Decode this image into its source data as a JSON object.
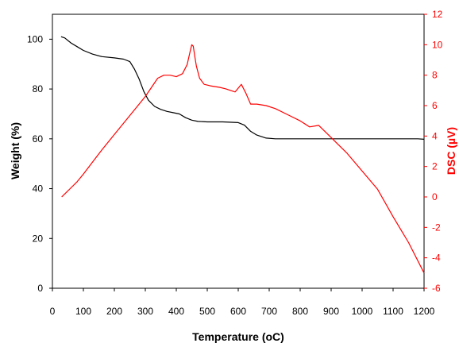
{
  "colors": {
    "weight": "#000000",
    "dsc": "#ff0000",
    "axis": "#000000"
  },
  "chart_data": {
    "type": "line",
    "xlabel": "Temperature (oC)",
    "ylabel_left": "Weight (%)",
    "ylabel_right": "DSC (µV)",
    "xlim": [
      0,
      1200
    ],
    "ylim_left": [
      0,
      110
    ],
    "ylim_right": [
      -6,
      12
    ],
    "x_ticks": [
      0,
      100,
      200,
      300,
      400,
      500,
      600,
      700,
      800,
      900,
      1000,
      1100,
      1200
    ],
    "y_left_ticks": [
      0,
      20,
      40,
      60,
      80,
      100
    ],
    "y_right_ticks": [
      -6,
      -4,
      -2,
      0,
      2,
      4,
      6,
      8,
      10,
      12
    ],
    "grid": false,
    "series": [
      {
        "axis": "left",
        "x": [
          28,
          40,
          60,
          80,
          100,
          130,
          160,
          200,
          230,
          250,
          265,
          280,
          295,
          310,
          330,
          350,
          370,
          390,
          410,
          430,
          450,
          470,
          500,
          550,
          600,
          620,
          640,
          660,
          690,
          720,
          800,
          900,
          1000,
          1100,
          1180,
          1200
        ],
        "y": [
          101,
          100.5,
          98.5,
          97,
          95.5,
          94,
          93,
          92.5,
          92,
          91,
          88,
          84,
          79,
          75.5,
          73,
          71.8,
          71,
          70.5,
          70,
          68.5,
          67.5,
          67,
          66.8,
          66.8,
          66.5,
          65.5,
          63,
          61.5,
          60.3,
          60,
          60,
          60,
          60,
          60,
          60,
          59.8
        ]
      },
      {
        "axis": "right",
        "x": [
          30,
          40,
          60,
          80,
          100,
          130,
          160,
          200,
          240,
          280,
          300,
          320,
          340,
          360,
          380,
          400,
          420,
          435,
          445,
          450,
          455,
          460,
          465,
          475,
          490,
          510,
          540,
          560,
          590,
          610,
          625,
          640,
          660,
          690,
          720,
          760,
          800,
          830,
          860,
          880,
          900,
          920,
          950,
          1000,
          1050,
          1100,
          1150,
          1200
        ],
        "y": [
          0,
          0.2,
          0.6,
          1,
          1.5,
          2.3,
          3.1,
          4.1,
          5.1,
          6.1,
          6.6,
          7.2,
          7.8,
          8,
          8,
          7.9,
          8.1,
          8.7,
          9.6,
          10,
          9.9,
          9.2,
          8.6,
          7.8,
          7.4,
          7.3,
          7.2,
          7.1,
          6.9,
          7.4,
          6.8,
          6.1,
          6.1,
          6,
          5.8,
          5.4,
          5,
          4.6,
          4.7,
          4.3,
          3.9,
          3.5,
          2.9,
          1.7,
          0.5,
          -1.3,
          -3,
          -5
        ]
      }
    ]
  }
}
